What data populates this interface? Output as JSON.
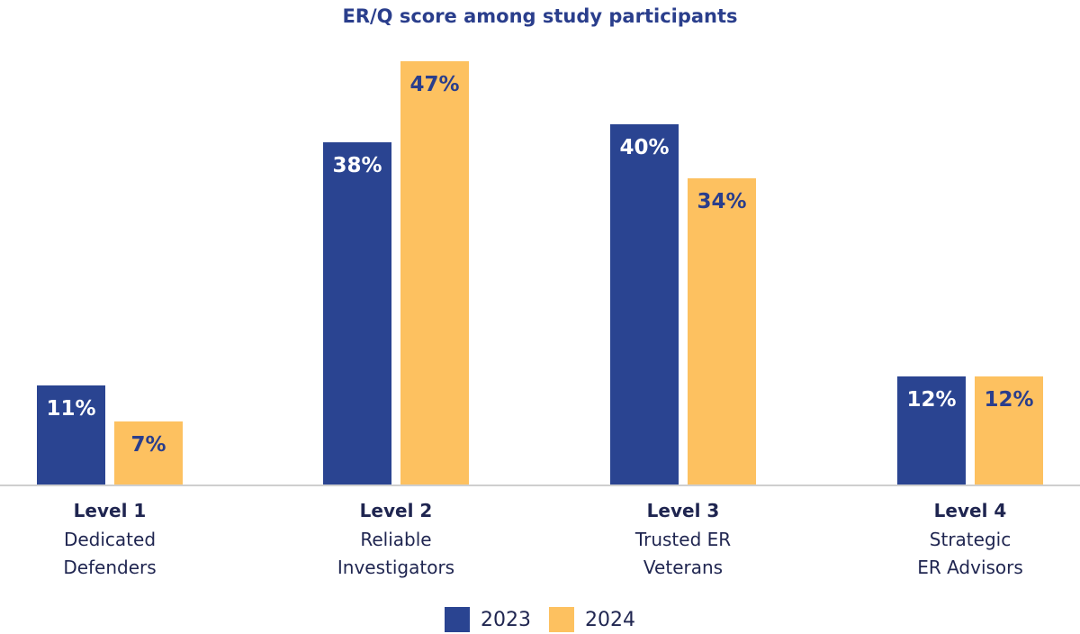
{
  "chart_data": {
    "type": "bar",
    "title": "ER/Q score among study participants",
    "categories": [
      {
        "level": "Level 1",
        "lines": [
          "Dedicated",
          "Defenders"
        ]
      },
      {
        "level": "Level 2",
        "lines": [
          "Reliable",
          "Investigators"
        ]
      },
      {
        "level": "Level 3",
        "lines": [
          "Trusted ER",
          "Veterans"
        ]
      },
      {
        "level": "Level 4",
        "lines": [
          "Strategic",
          "ER Advisors"
        ]
      }
    ],
    "series": [
      {
        "name": "2023",
        "color": "#2a4491",
        "label_color": "#ffffff",
        "values": [
          11,
          38,
          40,
          12
        ],
        "labels": [
          "11%",
          "38%",
          "40%",
          "12%"
        ]
      },
      {
        "name": "2024",
        "color": "#fdc160",
        "label_color": "#2a3e8c",
        "values": [
          7,
          47,
          34,
          12
        ],
        "labels": [
          "7%",
          "47%",
          "34%",
          "12%"
        ]
      }
    ],
    "ylim": [
      0,
      50
    ],
    "grid": false,
    "legend_position": "bottom-center"
  }
}
